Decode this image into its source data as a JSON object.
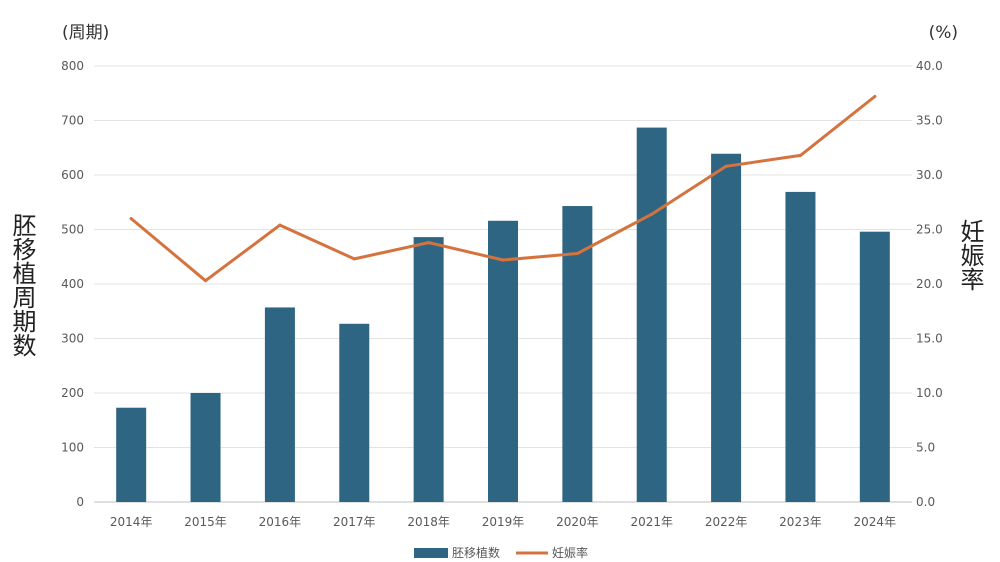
{
  "chart_data": {
    "type": "bar+line",
    "categories": [
      "2014年",
      "2015年",
      "2016年",
      "2017年",
      "2018年",
      "2019年",
      "2020年",
      "2021年",
      "2022年",
      "2023年",
      "2024年"
    ],
    "series": [
      {
        "name": "胚移植数",
        "type": "bar",
        "axis": "left",
        "values": [
          173,
          200,
          357,
          327,
          486,
          516,
          543,
          687,
          639,
          569,
          496
        ],
        "color": "#2e6582"
      },
      {
        "name": "妊娠率",
        "type": "line",
        "axis": "right",
        "values": [
          26.0,
          20.3,
          25.4,
          22.3,
          23.8,
          22.2,
          22.8,
          26.4,
          30.8,
          31.8,
          37.2
        ],
        "color": "#d5733f"
      }
    ],
    "y_left": {
      "label": "胚移植周期数",
      "unit": "(周期)",
      "range": [
        0,
        800
      ],
      "ticks": [
        "0",
        "100",
        "200",
        "300",
        "400",
        "500",
        "600",
        "700",
        "800"
      ]
    },
    "y_right": {
      "label": "妊娠率",
      "unit": "(%)",
      "range": [
        0,
        40
      ],
      "ticks": [
        "0.0",
        "5.0",
        "10.0",
        "15.0",
        "20.0",
        "25.0",
        "30.0",
        "35.0",
        "40.0"
      ]
    },
    "grid": true,
    "legend_position": "bottom-center"
  }
}
